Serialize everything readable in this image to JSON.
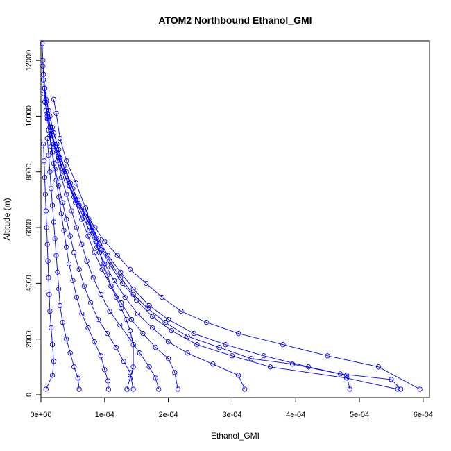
{
  "chart_data": {
    "type": "line",
    "title": "ATOM2 Northbound Ethanol_GMI",
    "xlabel": "Ethanol_GMI",
    "ylabel": "Altitude (m)",
    "xlim": [
      -0.0,
      0.00061
    ],
    "ylim": [
      -100,
      12700
    ],
    "x_ticks": [
      0,
      0.0001,
      0.0002,
      0.0003,
      0.0004,
      0.0005,
      0.0006
    ],
    "x_tick_labels": [
      "0e+00",
      "1e-04",
      "2e-04",
      "3e-04",
      "4e-04",
      "5e-04",
      "6e-04"
    ],
    "y_ticks": [
      0,
      2000,
      4000,
      6000,
      8000,
      10000,
      12000
    ],
    "y_tick_labels": [
      "0",
      "2000",
      "4000",
      "6000",
      "8000",
      "10000",
      "12000"
    ],
    "grid": false,
    "legend": "none",
    "series_color": "#0000ff",
    "marker": "open-circle",
    "series": [
      {
        "points": [
          [
            2e-06,
            12600
          ],
          [
            3e-06,
            12000
          ],
          [
            4e-06,
            11500
          ],
          [
            5e-06,
            11000
          ],
          [
            8e-06,
            10500
          ],
          [
            1e-05,
            10000
          ],
          [
            1.5e-05,
            9500
          ],
          [
            2e-05,
            9000
          ],
          [
            2.8e-05,
            8500
          ],
          [
            3.5e-05,
            8000
          ],
          [
            4.5e-05,
            7500
          ],
          [
            5.5e-05,
            7000
          ],
          [
            7e-05,
            6500
          ],
          [
            8.5e-05,
            6000
          ],
          [
            0.0001,
            5500
          ],
          [
            0.00012,
            5000
          ],
          [
            0.00014,
            4500
          ],
          [
            0.000165,
            4000
          ],
          [
            0.00019,
            3500
          ],
          [
            0.00022,
            3000
          ],
          [
            0.00026,
            2600
          ],
          [
            0.00031,
            2200
          ],
          [
            0.00038,
            1800
          ],
          [
            0.00045,
            1400
          ],
          [
            0.00053,
            1000
          ],
          [
            0.000595,
            200
          ]
        ]
      },
      {
        "points": [
          [
            3e-06,
            11800
          ],
          [
            6e-06,
            11000
          ],
          [
            1.2e-05,
            10200
          ],
          [
            1.8e-05,
            9600
          ],
          [
            2.5e-05,
            9000
          ],
          [
            3e-05,
            8500
          ],
          [
            4e-05,
            8000
          ],
          [
            5e-05,
            7400
          ],
          [
            6e-05,
            6800
          ],
          [
            7.5e-05,
            6200
          ],
          [
            9e-05,
            5600
          ],
          [
            0.000105,
            5000
          ],
          [
            0.000125,
            4400
          ],
          [
            0.000145,
            3800
          ],
          [
            0.00017,
            3200
          ],
          [
            0.0002,
            2700
          ],
          [
            0.00024,
            2200
          ],
          [
            0.00029,
            1800
          ],
          [
            0.00035,
            1400
          ],
          [
            0.00042,
            1000
          ],
          [
            0.00048,
            700
          ],
          [
            0.000485,
            200
          ]
        ]
      },
      {
        "points": [
          [
            4e-06,
            11300
          ],
          [
            8e-06,
            10600
          ],
          [
            1.4e-05,
            10000
          ],
          [
            2e-05,
            9400
          ],
          [
            2.8e-05,
            8800
          ],
          [
            3.6e-05,
            8200
          ],
          [
            4.6e-05,
            7600
          ],
          [
            5.8e-05,
            7000
          ],
          [
            7e-05,
            6400
          ],
          [
            8.2e-05,
            5800
          ],
          [
            9.5e-05,
            5200
          ],
          [
            0.00011,
            4600
          ],
          [
            0.000128,
            4000
          ],
          [
            0.00015,
            3400
          ],
          [
            0.000175,
            2800
          ],
          [
            0.000205,
            2300
          ],
          [
            0.000245,
            1800
          ],
          [
            0.0003,
            1400
          ],
          [
            0.00036,
            1000
          ],
          [
            0.00048,
            600
          ],
          [
            0.00056,
            200
          ]
        ]
      },
      {
        "points": [
          [
            5e-06,
            10800
          ],
          [
            1e-05,
            10100
          ],
          [
            1.6e-05,
            9500
          ],
          [
            2.2e-05,
            8900
          ],
          [
            3e-05,
            8300
          ],
          [
            4e-05,
            7700
          ],
          [
            5.2e-05,
            7100
          ],
          [
            6.4e-05,
            6500
          ],
          [
            7.6e-05,
            5900
          ],
          [
            8.8e-05,
            5300
          ],
          [
            0.0001,
            4700
          ],
          [
            0.000115,
            4100
          ],
          [
            0.000132,
            3500
          ],
          [
            0.000152,
            2900
          ],
          [
            0.000175,
            2400
          ],
          [
            0.0002,
            1900
          ],
          [
            0.00023,
            1500
          ],
          [
            0.00027,
            1100
          ],
          [
            0.00031,
            700
          ],
          [
            0.00032,
            200
          ]
        ]
      },
      {
        "points": [
          [
            6e-06,
            10500
          ],
          [
            1.2e-05,
            9900
          ],
          [
            1.8e-05,
            9300
          ],
          [
            2.6e-05,
            8700
          ],
          [
            3.4e-05,
            8100
          ],
          [
            4.4e-05,
            7500
          ],
          [
            5.4e-05,
            6900
          ],
          [
            6.4e-05,
            6300
          ],
          [
            7.4e-05,
            5700
          ],
          [
            8.4e-05,
            5100
          ],
          [
            9.6e-05,
            4500
          ],
          [
            0.00011,
            3900
          ],
          [
            0.000126,
            3300
          ],
          [
            0.000142,
            2700
          ],
          [
            0.00016,
            2200
          ],
          [
            0.00018,
            1700
          ],
          [
            0.0002,
            1300
          ],
          [
            0.00021,
            800
          ],
          [
            0.000215,
            200
          ]
        ]
      },
      {
        "points": [
          [
            8e-06,
            10200
          ],
          [
            1.4e-05,
            9600
          ],
          [
            2e-05,
            9000
          ],
          [
            2.6e-05,
            8400
          ],
          [
            3.2e-05,
            7800
          ],
          [
            4e-05,
            7200
          ],
          [
            4.8e-05,
            6600
          ],
          [
            5.6e-05,
            6000
          ],
          [
            6.4e-05,
            5400
          ],
          [
            7.2e-05,
            4800
          ],
          [
            8.2e-05,
            4200
          ],
          [
            9.4e-05,
            3600
          ],
          [
            0.000108,
            3000
          ],
          [
            0.000124,
            2500
          ],
          [
            0.00014,
            2000
          ],
          [
            0.000155,
            1500
          ],
          [
            0.00017,
            1000
          ],
          [
            0.00018,
            600
          ],
          [
            0.000185,
            200
          ]
        ]
      },
      {
        "points": [
          [
            1e-05,
            9900
          ],
          [
            1.4e-05,
            9300
          ],
          [
            1.8e-05,
            8700
          ],
          [
            2.2e-05,
            8100
          ],
          [
            2.8e-05,
            7500
          ],
          [
            3.4e-05,
            6900
          ],
          [
            4e-05,
            6300
          ],
          [
            4.6e-05,
            5700
          ],
          [
            5.2e-05,
            5100
          ],
          [
            6e-05,
            4500
          ],
          [
            6.8e-05,
            3900
          ],
          [
            7.8e-05,
            3300
          ],
          [
            9e-05,
            2700
          ],
          [
            0.000104,
            2200
          ],
          [
            0.000118,
            1700
          ],
          [
            0.00013,
            1200
          ],
          [
            0.00014,
            800
          ],
          [
            0.000145,
            200
          ]
        ]
      },
      {
        "points": [
          [
            1.2e-05,
            9500
          ],
          [
            1.6e-05,
            8900
          ],
          [
            2e-05,
            8300
          ],
          [
            2.4e-05,
            7700
          ],
          [
            2.8e-05,
            7100
          ],
          [
            3.2e-05,
            6500
          ],
          [
            3.6e-05,
            5900
          ],
          [
            4e-05,
            5300
          ],
          [
            4.4e-05,
            4700
          ],
          [
            5e-05,
            4100
          ],
          [
            5.6e-05,
            3500
          ],
          [
            6.4e-05,
            2900
          ],
          [
            7.4e-05,
            2400
          ],
          [
            8.4e-05,
            1900
          ],
          [
            9.4e-05,
            1400
          ],
          [
            0.0001,
            900
          ],
          [
            0.000105,
            500
          ],
          [
            0.000106,
            200
          ]
        ]
      },
      {
        "points": [
          [
            1e-05,
            9200
          ],
          [
            1.2e-05,
            8600
          ],
          [
            1.4e-05,
            8000
          ],
          [
            1.6e-05,
            7400
          ],
          [
            1.8e-05,
            6800
          ],
          [
            2e-05,
            6200
          ],
          [
            2.2e-05,
            5600
          ],
          [
            2.4e-05,
            5000
          ],
          [
            2.6e-05,
            4400
          ],
          [
            2.8e-05,
            3800
          ],
          [
            3e-05,
            3200
          ],
          [
            3.4e-05,
            2600
          ],
          [
            4e-05,
            2000
          ],
          [
            4.6e-05,
            1500
          ],
          [
            5.2e-05,
            1000
          ],
          [
            5.8e-05,
            600
          ],
          [
            6e-05,
            200
          ]
        ]
      },
      {
        "points": [
          [
            4e-06,
            9000
          ],
          [
            5e-06,
            8400
          ],
          [
            6e-06,
            7800
          ],
          [
            7e-06,
            7200
          ],
          [
            8e-06,
            6600
          ],
          [
            9e-06,
            6000
          ],
          [
            1e-05,
            5400
          ],
          [
            1.1e-05,
            4800
          ],
          [
            1.2e-05,
            4200
          ],
          [
            1.3e-05,
            3600
          ],
          [
            1.4e-05,
            3000
          ],
          [
            1.6e-05,
            2400
          ],
          [
            1.8e-05,
            1800
          ],
          [
            2e-05,
            1200
          ],
          [
            1.8e-05,
            700
          ],
          [
            8e-06,
            200
          ]
        ]
      },
      {
        "points": [
          [
            2e-05,
            10600
          ],
          [
            2.4e-05,
            10100
          ],
          [
            3e-05,
            9200
          ],
          [
            4e-05,
            8400
          ],
          [
            5.5e-05,
            7600
          ],
          [
            7e-05,
            6700
          ],
          [
            8e-05,
            6000
          ],
          [
            9.2e-05,
            5400
          ],
          [
            0.000108,
            4800
          ],
          [
            0.000125,
            4200
          ],
          [
            0.000145,
            3600
          ],
          [
            0.000168,
            3100
          ],
          [
            0.000195,
            2600
          ],
          [
            0.00023,
            2100
          ],
          [
            0.00028,
            1700
          ],
          [
            0.00033,
            1300
          ],
          [
            0.000395,
            1100
          ],
          [
            0.00047,
            750
          ],
          [
            0.00055,
            550
          ],
          [
            0.000565,
            200
          ]
        ]
      },
      {
        "points": [
          [
            7e-05,
            6700
          ],
          [
            7.5e-05,
            6300
          ],
          [
            8e-05,
            5900
          ],
          [
            8.6e-05,
            5500
          ],
          [
            9.2e-05,
            5100
          ],
          [
            9.8e-05,
            4700
          ],
          [
            0.000104,
            4300
          ],
          [
            0.00011,
            3900
          ],
          [
            0.000118,
            3500
          ],
          [
            0.000126,
            3100
          ],
          [
            0.000134,
            2700
          ],
          [
            0.00014,
            2300
          ],
          [
            0.000145,
            1800
          ],
          [
            0.000145,
            1000
          ],
          [
            0.00014,
            600
          ],
          [
            0.000135,
            200
          ]
        ]
      }
    ]
  }
}
